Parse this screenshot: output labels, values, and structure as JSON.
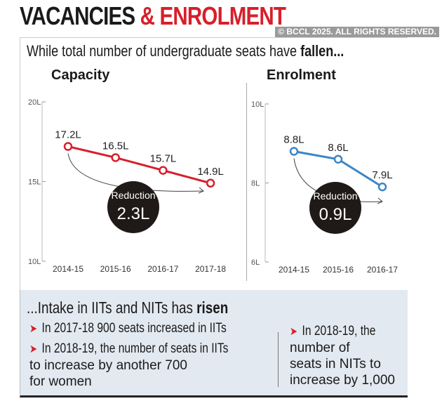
{
  "title": {
    "part1": "VACANCIES ",
    "part2": "& ENROLMENT"
  },
  "subtitle": {
    "text": "While total number of undergraduate seats have ",
    "bold": "fallen..."
  },
  "chart_data": [
    {
      "type": "line",
      "title": "Capacity",
      "categories": [
        "2014-15",
        "2015-16",
        "2016-17",
        "2017-18"
      ],
      "values": [
        17.2,
        16.5,
        15.7,
        14.9
      ],
      "data_labels": [
        "17.2L",
        "16.5L",
        "15.7L",
        "14.9L"
      ],
      "ylim": [
        10,
        20
      ],
      "yticks": [
        "10L",
        "15L",
        "20L"
      ],
      "ytick_values": [
        10,
        15,
        20
      ],
      "color": "#d71f2b",
      "annotation": {
        "label": "Reduction",
        "value": "2.3L"
      }
    },
    {
      "type": "line",
      "title": "Enrolment",
      "categories": [
        "2014-15",
        "2015-16",
        "2016-17"
      ],
      "values": [
        8.8,
        8.6,
        7.9
      ],
      "data_labels": [
        "8.8L",
        "8.6L",
        "7.9L"
      ],
      "ylim": [
        6,
        10
      ],
      "yticks": [
        "6L",
        "8L",
        "10L"
      ],
      "ytick_values": [
        6,
        8,
        10
      ],
      "color": "#3b86c6",
      "annotation": {
        "label": "Reduction",
        "value": "0.9L"
      }
    }
  ],
  "bottom": {
    "heading": "...Intake in IITs and NITs has ",
    "heading_bold": "risen",
    "bullets_left": [
      "In 2017-18  900 seats increased in IITs",
      "In 2018-19, the number of seats in IITs"
    ],
    "left_cont": [
      "to increase by another 700",
      "for women"
    ],
    "bullet_right": "In 2018-19, the",
    "right_cont": [
      "number of",
      "seats in NITs to",
      "increase by 1,000"
    ],
    "arrow_glyph": "➤"
  },
  "watermark": "© BCCL 2025. ALL RIGHTS RESERVED."
}
